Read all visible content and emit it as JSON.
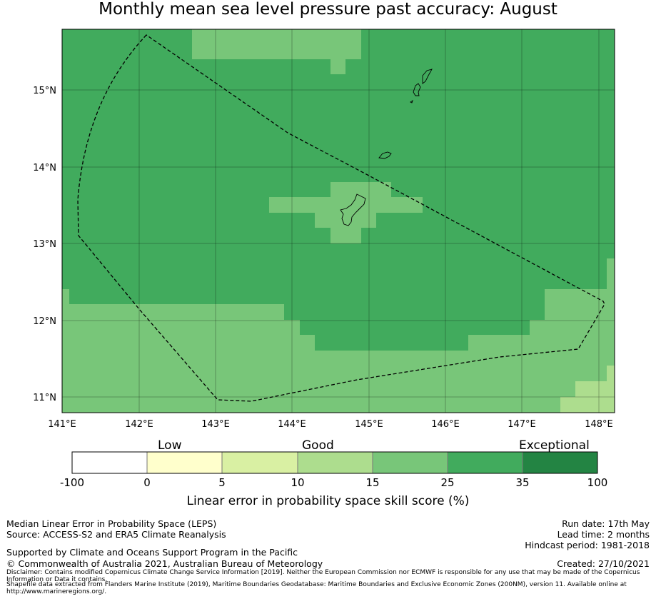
{
  "title": "Monthly mean sea level pressure past accuracy: August",
  "map": {
    "lon_labels": [
      "141°E",
      "142°E",
      "143°E",
      "144°E",
      "145°E",
      "146°E",
      "147°E",
      "148°E"
    ],
    "lat_labels": [
      "15°N",
      "14°N",
      "13°N",
      "12°N",
      "11°N"
    ]
  },
  "legend": {
    "categories": [
      "Low",
      "Good",
      "Exceptional"
    ],
    "ticks": [
      "-100",
      "0",
      "5",
      "10",
      "15",
      "25",
      "35",
      "100"
    ],
    "colors": [
      "#ffffff",
      "#ffffcc",
      "#d9f0a3",
      "#addd8e",
      "#78c679",
      "#41ab5d",
      "#238443"
    ],
    "label": "Linear error in probability space skill score (%)"
  },
  "footer": {
    "left": [
      "Median Linear Error in Probability Space (LEPS)",
      "Source: ACCESS-S2 and ERA5 Climate Reanalysis",
      "Supported by Climate and Oceans Support Program in the Pacific",
      "© Commonwealth of Australia 2021, Australian Bureau of Meteorology"
    ],
    "right": [
      "Run date: 17th May",
      "Lead time: 2 months",
      "Hindcast period: 1981-2018",
      "Created: 27/10/2021"
    ],
    "disclaimer": "Disclaimer: Contains modified Copernicus Climate Change Service Information [2019]. Neither the European Commission nor ECMWF is responsible for any use that may be made of the Copernicus Information or Data it contains.",
    "shapefile": "Shapefile data extracted from Flanders Marine Institute (2019), Maritime Boundaries Geodatabase: Maritime Boundaries and Exclusive Economic Zones (200NM), version 11. Available online at http://www.marineregions.org/."
  }
}
